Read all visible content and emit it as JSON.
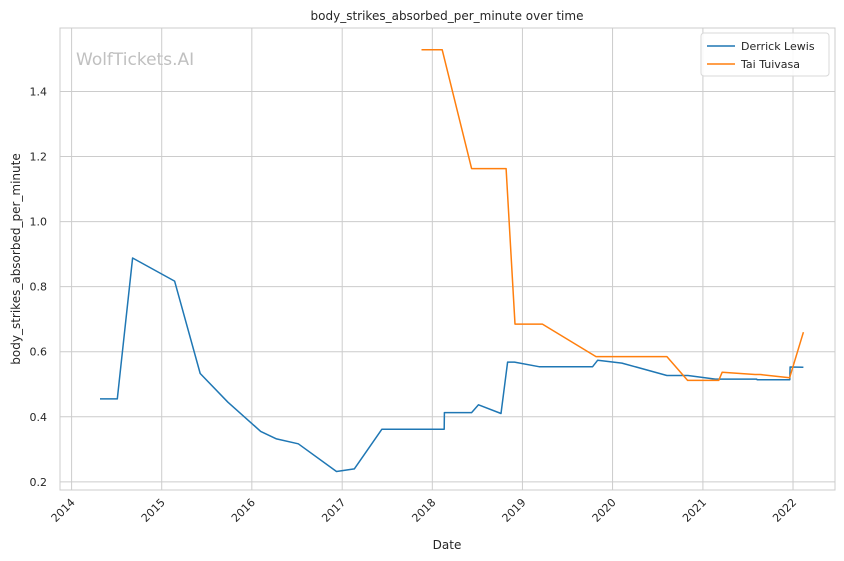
{
  "chart_data": {
    "type": "line",
    "title": "body_strikes_absorbed_per_minute over time",
    "xlabel": "Date",
    "ylabel": "body_strikes_absorbed_per_minute",
    "watermark": "WolfTickets.AI",
    "xlim": [
      "2013-11-15",
      "2022-06-20"
    ],
    "ylim": [
      0.175,
      1.595
    ],
    "x_ticks": [
      "2014",
      "2015",
      "2016",
      "2017",
      "2018",
      "2019",
      "2020",
      "2021",
      "2022"
    ],
    "y_ticks": [
      0.2,
      0.4,
      0.6,
      0.8,
      1.0,
      1.2,
      1.4
    ],
    "y_tick_labels": [
      "0.2",
      "0.4",
      "0.6",
      "0.8",
      "1.0",
      "1.2",
      "1.4"
    ],
    "grid": true,
    "legend_position": "top-right",
    "series": [
      {
        "name": "Derrick Lewis",
        "color": "#1f77b4",
        "points": [
          [
            "2014-04-26",
            0.455
          ],
          [
            "2014-07-05",
            0.455
          ],
          [
            "2014-09-05",
            0.888
          ],
          [
            "2015-02-22",
            0.817
          ],
          [
            "2015-06-06",
            0.533
          ],
          [
            "2015-09-26",
            0.445
          ],
          [
            "2016-02-06",
            0.355
          ],
          [
            "2016-04-10",
            0.332
          ],
          [
            "2016-07-07",
            0.317
          ],
          [
            "2016-12-09",
            0.232
          ],
          [
            "2017-02-19",
            0.24
          ],
          [
            "2017-06-11",
            0.362
          ],
          [
            "2018-02-18",
            0.362
          ],
          [
            "2018-02-19",
            0.413
          ],
          [
            "2018-06-09",
            0.413
          ],
          [
            "2018-07-07",
            0.437
          ],
          [
            "2018-10-06",
            0.41
          ],
          [
            "2018-11-02",
            0.568
          ],
          [
            "2018-11-30",
            0.568
          ],
          [
            "2019-03-09",
            0.554
          ],
          [
            "2019-10-12",
            0.554
          ],
          [
            "2019-11-02",
            0.574
          ],
          [
            "2020-02-08",
            0.565
          ],
          [
            "2020-08-08",
            0.527
          ],
          [
            "2020-11-01",
            0.527
          ],
          [
            "2021-02-20",
            0.516
          ],
          [
            "2021-08-07",
            0.516
          ],
          [
            "2021-08-08",
            0.514
          ],
          [
            "2021-12-19",
            0.514
          ],
          [
            "2021-12-20",
            0.553
          ],
          [
            "2022-02-12",
            0.552
          ]
        ]
      },
      {
        "name": "Tai Tuivasa",
        "color": "#ff7f0e",
        "points": [
          [
            "2017-11-18",
            1.528
          ],
          [
            "2018-02-10",
            1.528
          ],
          [
            "2018-06-09",
            1.163
          ],
          [
            "2018-10-27",
            1.163
          ],
          [
            "2018-12-02",
            0.685
          ],
          [
            "2019-03-23",
            0.685
          ],
          [
            "2019-10-26",
            0.585
          ],
          [
            "2020-08-08",
            0.585
          ],
          [
            "2020-10-31",
            0.512
          ],
          [
            "2021-03-06",
            0.512
          ],
          [
            "2021-03-20",
            0.537
          ],
          [
            "2021-07-31",
            0.53
          ],
          [
            "2021-08-21",
            0.53
          ],
          [
            "2021-12-18",
            0.52
          ],
          [
            "2022-02-12",
            0.66
          ]
        ]
      }
    ]
  }
}
